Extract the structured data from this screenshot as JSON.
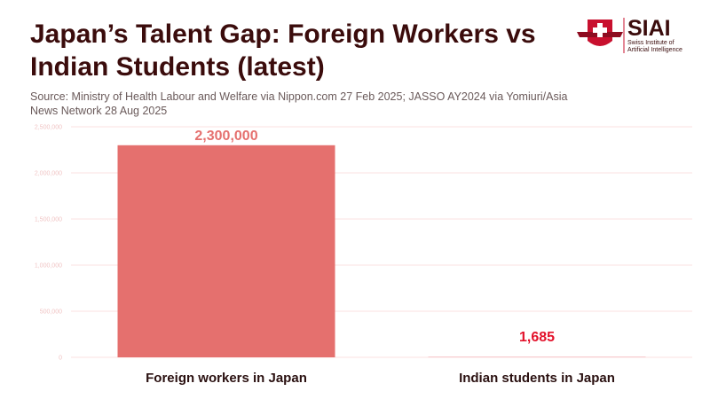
{
  "chart_data": {
    "type": "bar",
    "title": "Japan’s Talent Gap: Foreign Workers vs Indian Students (latest)",
    "subtitle": "Source: Ministry of Health Labour and Welfare via Nippon.com 27 Feb 2025; JASSO AY2024 via Yomiuri/Asia News Network 28 Aug 2025",
    "categories": [
      "Foreign workers in Japan",
      "Indian students in Japan"
    ],
    "values": [
      2300000,
      1685
    ],
    "value_labels": [
      "2,300,000",
      "1,685"
    ],
    "colors": [
      "#e5706e",
      "#e3122b"
    ],
    "ylim": [
      0,
      2500000
    ],
    "yticks": [
      0,
      {
        "value": 500000,
        "label": "500,000"
      },
      {
        "value": 1000000,
        "label": "1,000,000"
      },
      {
        "value": 1500000,
        "label": "1,500,000"
      },
      {
        "value": 2000000,
        "label": "2,000,000"
      },
      {
        "value": 2500000,
        "label": "2,500,000"
      }
    ],
    "grid": true
  },
  "logo": {
    "name": "SIAI",
    "tagline": "Swiss Institute of Artificial Intelligence"
  }
}
